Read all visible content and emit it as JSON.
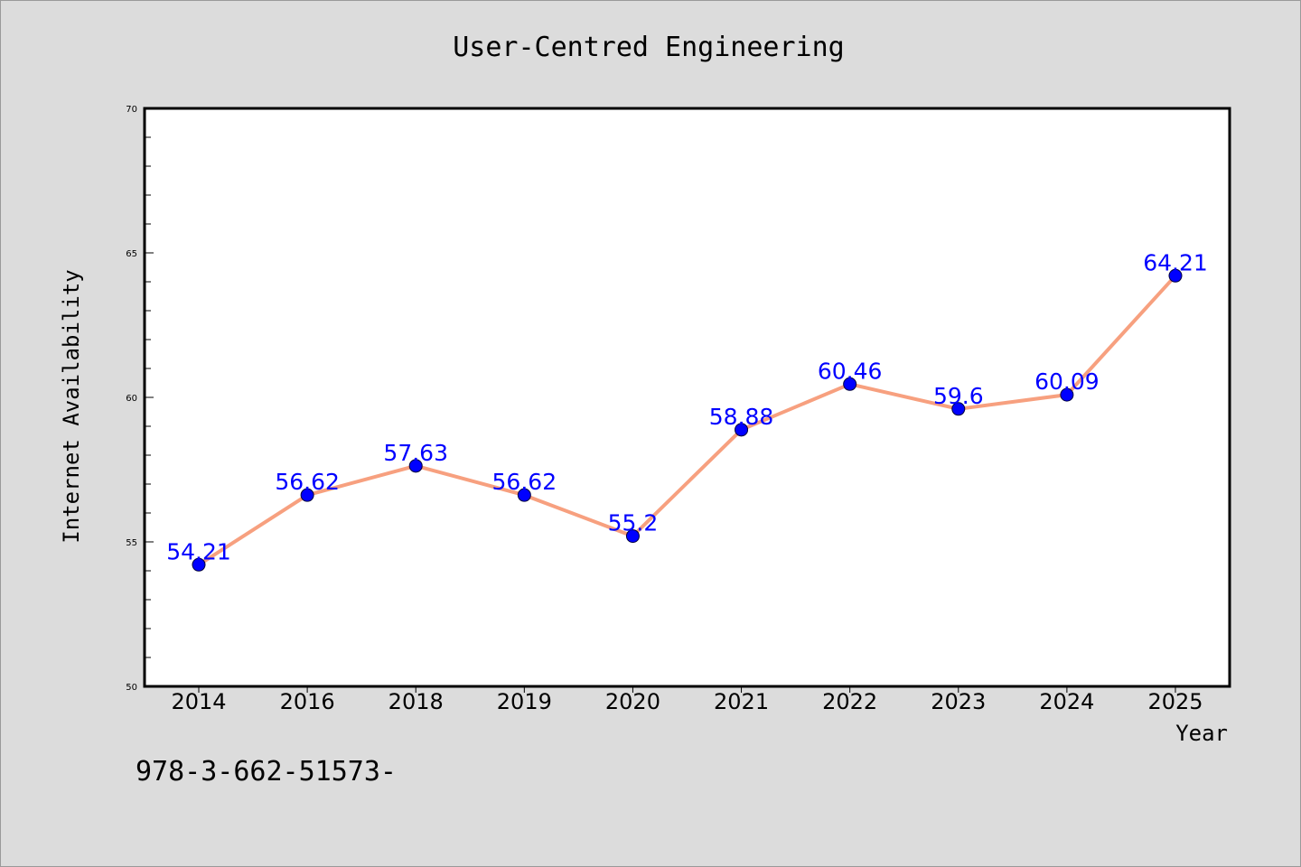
{
  "chart_data": {
    "type": "line",
    "title": "User-Centred Engineering",
    "xlabel": "Year",
    "ylabel": "Internet Availability",
    "categories": [
      "2014",
      "2016",
      "2018",
      "2019",
      "2020",
      "2021",
      "2022",
      "2023",
      "2024",
      "2025"
    ],
    "series": [
      {
        "values": [
          54.21,
          56.62,
          57.63,
          56.62,
          55.2,
          58.88,
          60.46,
          59.6,
          60.09,
          64.21
        ]
      }
    ],
    "ylim": [
      50,
      70
    ],
    "yticks": [
      50,
      55,
      60,
      65,
      70
    ],
    "y_minor_step": 1,
    "grid": false,
    "data_labels": true,
    "colors": {
      "figure_background": "#dcdcdc",
      "plot_background": "#ffffff",
      "line": "#f7a07f",
      "marker": "#0000ff",
      "data_label": "#0000ff"
    }
  },
  "footer_text": "978-3-662-51573-"
}
